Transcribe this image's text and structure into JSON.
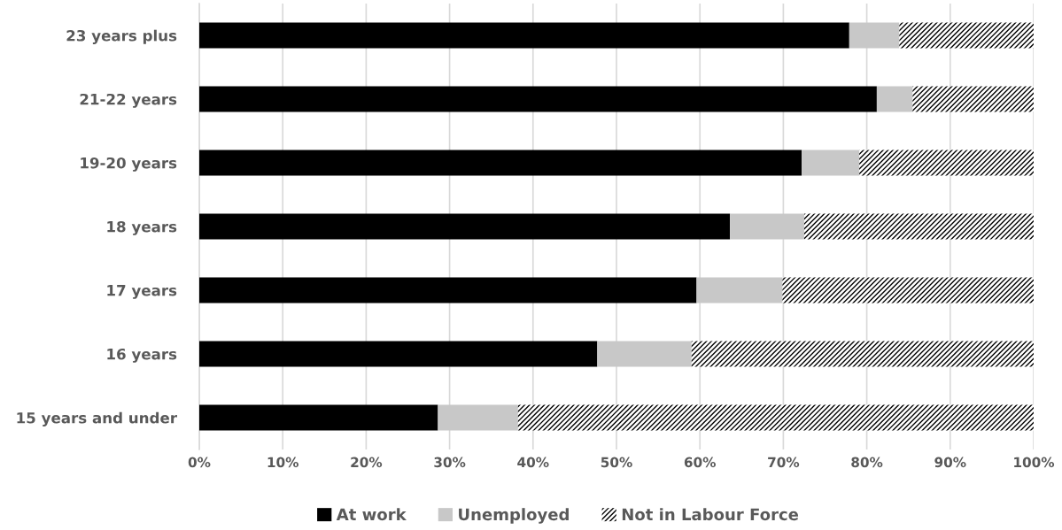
{
  "chart_data": {
    "type": "bar",
    "orientation": "horizontal",
    "stacked": true,
    "categories": [
      "23 years plus",
      "21-22 years",
      "19-20 years",
      "18 years",
      "17 years",
      "16 years",
      "15 years and under"
    ],
    "series": [
      {
        "name": "At work",
        "color": "#000000",
        "values": [
          77.9,
          81.2,
          72.2,
          63.6,
          59.6,
          47.7,
          28.6
        ]
      },
      {
        "name": "Unemployed",
        "color": "#c8c8c8",
        "values": [
          6.0,
          4.3,
          6.9,
          8.9,
          10.3,
          11.3,
          9.6
        ]
      },
      {
        "name": "Not in Labour Force",
        "color": "#ffffff",
        "values": [
          16.1,
          14.5,
          20.9,
          27.5,
          30.1,
          41.0,
          61.8
        ]
      }
    ],
    "xlim": [
      0,
      100
    ],
    "xticks": [
      {
        "value": 0,
        "label": "0%"
      },
      {
        "value": 10,
        "label": "10%"
      },
      {
        "value": 20,
        "label": "20%"
      },
      {
        "value": 30,
        "label": "30%"
      },
      {
        "value": 40,
        "label": "40%"
      },
      {
        "value": 50,
        "label": "50%"
      },
      {
        "value": 60,
        "label": "60%"
      },
      {
        "value": 70,
        "label": "70%"
      },
      {
        "value": 80,
        "label": "80%"
      },
      {
        "value": 90,
        "label": "90%"
      },
      {
        "value": 100,
        "label": "100%"
      }
    ],
    "grid": "x",
    "legend": "bottom"
  }
}
